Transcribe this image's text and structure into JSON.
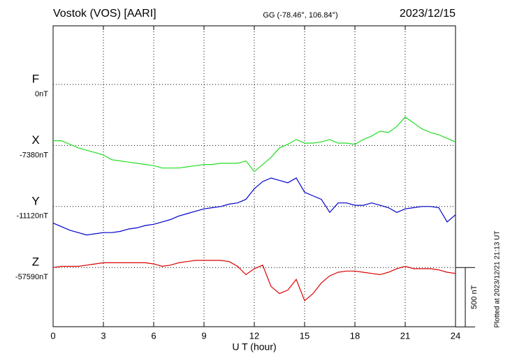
{
  "chart_data": {
    "type": "line",
    "title": "Vostok (VOS)  [AARI]",
    "subtitle": "GG (-78.46°, 106.84°)",
    "date": "2023/12/15",
    "x_label": "U T (hour)",
    "note": "Plotted at 2023/12/21 21:13 UT",
    "scale_bar": {
      "value": 500,
      "label": "500 nT"
    },
    "xlim": [
      0,
      24
    ],
    "xticks": [
      0,
      3,
      6,
      9,
      12,
      15,
      18,
      21,
      24
    ],
    "grid": true,
    "x": [
      0,
      0.5,
      1,
      1.5,
      2,
      2.5,
      3,
      3.5,
      4,
      4.5,
      5,
      5.5,
      6,
      6.5,
      7,
      7.5,
      8,
      8.5,
      9,
      9.5,
      10,
      10.5,
      11,
      11.5,
      12,
      12.5,
      13,
      13.5,
      14,
      14.5,
      15,
      15.5,
      16,
      16.5,
      17,
      17.5,
      18,
      18.5,
      19,
      19.5,
      20,
      20.5,
      21,
      21.5,
      22,
      22.5,
      23,
      23.5,
      24
    ],
    "series": [
      {
        "name": "F",
        "color": "#e8a800",
        "baseline": {
          "value": 0,
          "label": "0nT"
        }
      },
      {
        "name": "X",
        "color": "#22dd22",
        "baseline": {
          "value": -7380,
          "label": "-7380nT"
        },
        "values": [
          -7340,
          -7340,
          -7370,
          -7400,
          -7420,
          -7440,
          -7460,
          -7500,
          -7510,
          -7520,
          -7530,
          -7540,
          -7550,
          -7570,
          -7570,
          -7570,
          -7560,
          -7550,
          -7540,
          -7540,
          -7530,
          -7530,
          -7530,
          -7510,
          -7600,
          -7540,
          -7480,
          -7400,
          -7370,
          -7330,
          -7360,
          -7360,
          -7350,
          -7330,
          -7360,
          -7360,
          -7370,
          -7330,
          -7300,
          -7260,
          -7270,
          -7220,
          -7140,
          -7190,
          -7240,
          -7270,
          -7290,
          -7320,
          -7350
        ]
      },
      {
        "name": "Y",
        "color": "#0000cc",
        "baseline": {
          "value": -11120,
          "label": "-11120nT"
        },
        "values": [
          -11260,
          -11290,
          -11320,
          -11340,
          -11360,
          -11350,
          -11340,
          -11340,
          -11330,
          -11310,
          -11300,
          -11280,
          -11270,
          -11250,
          -11230,
          -11200,
          -11180,
          -11160,
          -11140,
          -11130,
          -11120,
          -11100,
          -11090,
          -11060,
          -10970,
          -10910,
          -10880,
          -10900,
          -10920,
          -10880,
          -11000,
          -11030,
          -11060,
          -11170,
          -11090,
          -11090,
          -11110,
          -11110,
          -11090,
          -11110,
          -11130,
          -11170,
          -11140,
          -11130,
          -11120,
          -11120,
          -11130,
          -11250,
          -11190
        ]
      },
      {
        "name": "Z",
        "color": "#dd0000",
        "baseline": {
          "value": -57590,
          "label": "-57590nT"
        },
        "values": [
          -57590,
          -57580,
          -57580,
          -57580,
          -57570,
          -57560,
          -57550,
          -57550,
          -57550,
          -57550,
          -57550,
          -57550,
          -57560,
          -57580,
          -57570,
          -57550,
          -57540,
          -57530,
          -57530,
          -57530,
          -57530,
          -57540,
          -57580,
          -57650,
          -57600,
          -57570,
          -57750,
          -57810,
          -57780,
          -57690,
          -57870,
          -57810,
          -57720,
          -57660,
          -57630,
          -57620,
          -57620,
          -57630,
          -57640,
          -57650,
          -57630,
          -57600,
          -57580,
          -57600,
          -57600,
          -57600,
          -57610,
          -57630,
          -57640
        ]
      }
    ]
  }
}
